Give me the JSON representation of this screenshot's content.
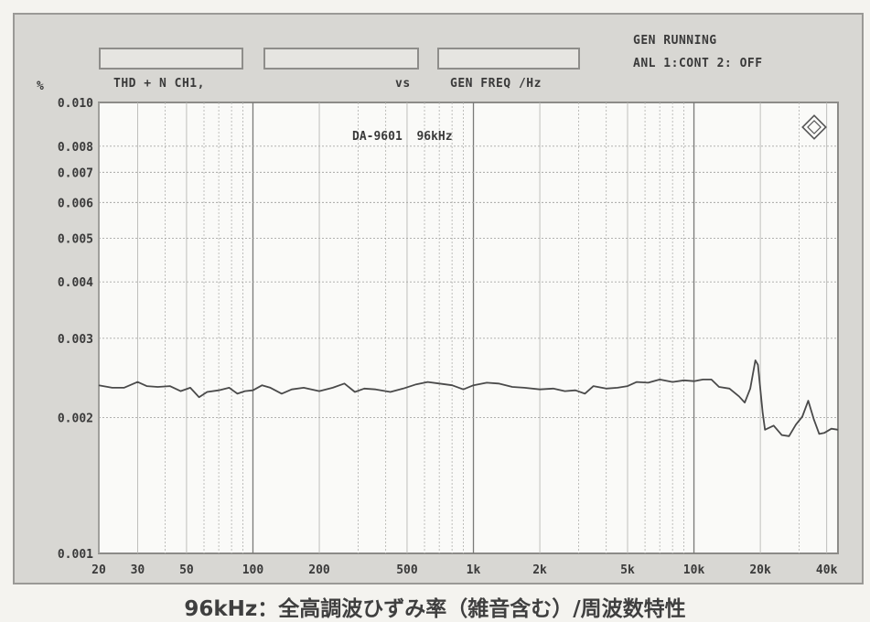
{
  "header": {
    "measurement": "THD + N CH1,",
    "vs_label": "vs",
    "sweep_label": "GEN FREQ /Hz",
    "status_line1": "GEN RUNNING",
    "status_line2": "ANL 1:CONT 2: OFF"
  },
  "caption": "96kHz：全高調波ひずみ率（雑音含む）/周波数特性",
  "chart_data": {
    "type": "line",
    "title": "DA-9601  96kHz",
    "ylabel": "%",
    "xlabel": "",
    "x_scale": "log",
    "y_scale": "log",
    "xlim": [
      20,
      45000
    ],
    "ylim": [
      0.001,
      0.01
    ],
    "grid": true,
    "x_tick_labels": [
      {
        "value": 20,
        "label": "20"
      },
      {
        "value": 30,
        "label": "30"
      },
      {
        "value": 50,
        "label": "50"
      },
      {
        "value": 100,
        "label": "100"
      },
      {
        "value": 200,
        "label": "200"
      },
      {
        "value": 500,
        "label": "500"
      },
      {
        "value": 1000,
        "label": "1k"
      },
      {
        "value": 2000,
        "label": "2k"
      },
      {
        "value": 5000,
        "label": "5k"
      },
      {
        "value": 10000,
        "label": "10k"
      },
      {
        "value": 20000,
        "label": "20k"
      },
      {
        "value": 40000,
        "label": "40k"
      }
    ],
    "y_tick_labels": [
      {
        "value": 0.01,
        "label": "0.010"
      },
      {
        "value": 0.008,
        "label": "0.008"
      },
      {
        "value": 0.007,
        "label": "0.007"
      },
      {
        "value": 0.006,
        "label": "0.006"
      },
      {
        "value": 0.005,
        "label": "0.005"
      },
      {
        "value": 0.004,
        "label": "0.004"
      },
      {
        "value": 0.003,
        "label": "0.003"
      },
      {
        "value": 0.002,
        "label": "0.002"
      },
      {
        "value": 0.001,
        "label": "0.001"
      }
    ],
    "series": [
      {
        "color": "#4a4a4a",
        "points": [
          [
            20,
            0.00236
          ],
          [
            23,
            0.00233
          ],
          [
            26,
            0.00233
          ],
          [
            30,
            0.0024
          ],
          [
            33,
            0.00235
          ],
          [
            37,
            0.00234
          ],
          [
            42,
            0.00235
          ],
          [
            47,
            0.00229
          ],
          [
            52,
            0.00233
          ],
          [
            57,
            0.00222
          ],
          [
            62,
            0.00228
          ],
          [
            70,
            0.0023
          ],
          [
            78,
            0.00233
          ],
          [
            85,
            0.00226
          ],
          [
            92,
            0.00229
          ],
          [
            100,
            0.0023
          ],
          [
            110,
            0.00236
          ],
          [
            120,
            0.00233
          ],
          [
            135,
            0.00226
          ],
          [
            150,
            0.00231
          ],
          [
            170,
            0.00233
          ],
          [
            200,
            0.00229
          ],
          [
            230,
            0.00233
          ],
          [
            260,
            0.00238
          ],
          [
            290,
            0.00228
          ],
          [
            320,
            0.00232
          ],
          [
            360,
            0.00231
          ],
          [
            420,
            0.00228
          ],
          [
            480,
            0.00232
          ],
          [
            550,
            0.00237
          ],
          [
            620,
            0.0024
          ],
          [
            700,
            0.00238
          ],
          [
            800,
            0.00236
          ],
          [
            900,
            0.00231
          ],
          [
            1000,
            0.00236
          ],
          [
            1150,
            0.00239
          ],
          [
            1300,
            0.00238
          ],
          [
            1500,
            0.00234
          ],
          [
            1700,
            0.00233
          ],
          [
            2000,
            0.00231
          ],
          [
            2300,
            0.00232
          ],
          [
            2600,
            0.00229
          ],
          [
            2900,
            0.0023
          ],
          [
            3200,
            0.00226
          ],
          [
            3500,
            0.00235
          ],
          [
            4000,
            0.00232
          ],
          [
            4500,
            0.00233
          ],
          [
            5000,
            0.00235
          ],
          [
            5500,
            0.0024
          ],
          [
            6200,
            0.00239
          ],
          [
            7000,
            0.00243
          ],
          [
            8000,
            0.0024
          ],
          [
            9000,
            0.00242
          ],
          [
            10000,
            0.00241
          ],
          [
            11000,
            0.00243
          ],
          [
            12000,
            0.00243
          ],
          [
            13000,
            0.00234
          ],
          [
            14500,
            0.00232
          ],
          [
            16000,
            0.00223
          ],
          [
            17000,
            0.00216
          ],
          [
            18000,
            0.00232
          ],
          [
            19000,
            0.00268
          ],
          [
            19500,
            0.00262
          ],
          [
            20500,
            0.00205
          ],
          [
            21000,
            0.00188
          ],
          [
            23000,
            0.00192
          ],
          [
            25000,
            0.00183
          ],
          [
            27000,
            0.00182
          ],
          [
            29000,
            0.00193
          ],
          [
            31000,
            0.00201
          ],
          [
            33000,
            0.00218
          ],
          [
            35000,
            0.00198
          ],
          [
            37000,
            0.00184
          ],
          [
            39000,
            0.00185
          ],
          [
            42000,
            0.00189
          ],
          [
            45000,
            0.00188
          ]
        ]
      }
    ]
  }
}
